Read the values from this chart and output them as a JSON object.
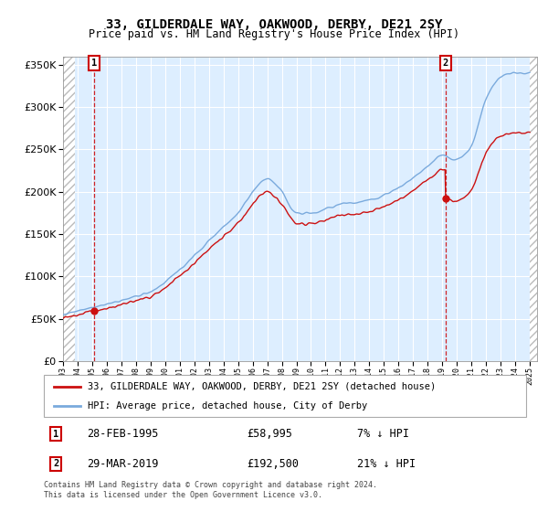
{
  "title": "33, GILDERDALE WAY, OAKWOOD, DERBY, DE21 2SY",
  "subtitle": "Price paid vs. HM Land Registry's House Price Index (HPI)",
  "legend_line1": "33, GILDERDALE WAY, OAKWOOD, DERBY, DE21 2SY (detached house)",
  "legend_line2": "HPI: Average price, detached house, City of Derby",
  "footnote": "Contains HM Land Registry data © Crown copyright and database right 2024.\nThis data is licensed under the Open Government Licence v3.0.",
  "transaction1_date": "28-FEB-1995",
  "transaction1_price": 58995,
  "transaction1_label": "7% ↓ HPI",
  "transaction2_date": "29-MAR-2019",
  "transaction2_price": 192500,
  "transaction2_label": "21% ↓ HPI",
  "ylim": [
    0,
    360000
  ],
  "yticks": [
    0,
    50000,
    100000,
    150000,
    200000,
    250000,
    300000,
    350000
  ],
  "hatch_color": "#bbbbbb",
  "plot_bg": "#ddeeff",
  "grid_color": "#ffffff",
  "hpi_line_color": "#7aaadd",
  "price_line_color": "#cc1111",
  "vline_color": "#cc0000",
  "marker_color": "#cc1111",
  "t1_year": 1995.12,
  "t2_year": 2019.23
}
